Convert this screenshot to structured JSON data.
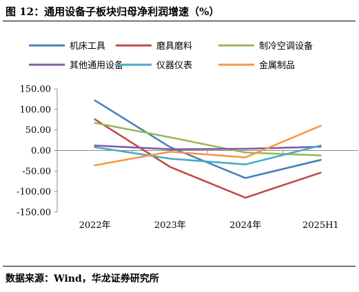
{
  "header": {
    "title": "图 12：通用设备子板块归母净利润增速（%）"
  },
  "footer": {
    "source": "数据来源：Wind，华龙证券研究所"
  },
  "chart_data": {
    "type": "line",
    "x": [
      "2022年",
      "2023年",
      "2024年",
      "2025H1"
    ],
    "ylim": [
      -150,
      150
    ],
    "yticks": [
      150,
      100,
      50,
      0,
      -50,
      -100,
      -150
    ],
    "ytick_labels": [
      "150.00",
      "100.00",
      "50.00",
      "0.00",
      "-50.00",
      "-100.00",
      "-150.00"
    ],
    "legend_position": "top",
    "grid": false,
    "series": [
      {
        "name": "机床工具",
        "color": "#4a7ebb",
        "values": [
          122,
          8,
          -67,
          -23
        ]
      },
      {
        "name": "磨具磨料",
        "color": "#be4b48",
        "values": [
          76,
          -40,
          -115,
          -54
        ]
      },
      {
        "name": "制冷空调设备",
        "color": "#98b954",
        "values": [
          67,
          32,
          -5,
          -12
        ]
      },
      {
        "name": "其他通用设备",
        "color": "#7d60a0",
        "values": [
          12,
          3,
          4,
          9
        ]
      },
      {
        "name": "仪器仪表",
        "color": "#46aac5",
        "values": [
          8,
          -20,
          -34,
          12
        ]
      },
      {
        "name": "金属制品",
        "color": "#f69646",
        "values": [
          -36,
          -3,
          -17,
          60
        ]
      }
    ]
  }
}
